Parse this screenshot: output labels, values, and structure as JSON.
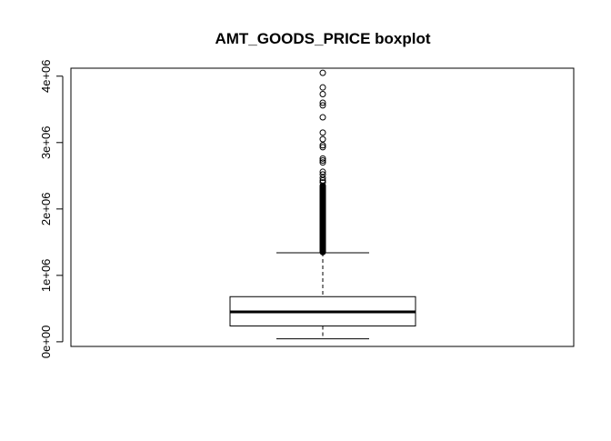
{
  "chart_data": {
    "type": "boxplot",
    "title": "AMT_GOODS_PRICE boxplot",
    "xlabel": "",
    "ylabel": "",
    "ylim": [
      -70000,
      4120000
    ],
    "y_ticks": [
      0,
      1000000,
      2000000,
      3000000,
      4000000
    ],
    "y_tick_labels": [
      "0e+00",
      "1e+06",
      "2e+06",
      "3e+06",
      "4e+06"
    ],
    "grid": false,
    "box": {
      "whisker_low": 45000,
      "q1": 238500,
      "median": 450000,
      "q3": 679500,
      "whisker_high": 1341000
    },
    "outliers_dense_range": [
      1350000,
      2350000
    ],
    "outliers": [
      2400000,
      2430000,
      2470000,
      2520000,
      2560000,
      2700000,
      2730000,
      2760000,
      2930000,
      2960000,
      3050000,
      3150000,
      3380000,
      3560000,
      3600000,
      3730000,
      3830000,
      4050000
    ]
  }
}
